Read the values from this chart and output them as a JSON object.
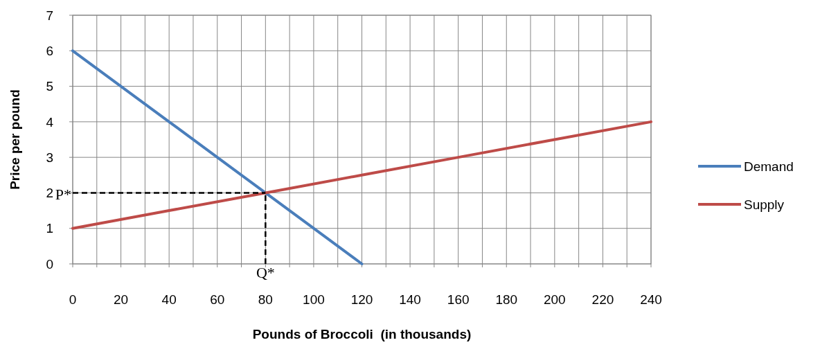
{
  "chart_data": {
    "type": "line",
    "xlabel": "Pounds of Broccoli  (in thousands)",
    "ylabel": "Price per pound",
    "series": [
      {
        "name": "Demand",
        "color": "#4a7ebb",
        "x": [
          0,
          20,
          40,
          60,
          80,
          100,
          120
        ],
        "values": [
          6,
          5,
          4,
          3,
          2,
          1,
          0
        ]
      },
      {
        "name": "Supply",
        "color": "#be4b48",
        "x": [
          0,
          40,
          80,
          120,
          160,
          200,
          240
        ],
        "values": [
          1,
          1.5,
          2,
          2.5,
          3,
          3.5,
          4
        ]
      }
    ],
    "xlim": [
      0,
      240
    ],
    "xticks": [
      0,
      {
        "value": 10,
        "label": null
      },
      20,
      {
        "value": 30,
        "label": null
      },
      40,
      {
        "value": 50,
        "label": null
      },
      60,
      {
        "value": 70,
        "label": null
      },
      80,
      {
        "value": 90,
        "label": null
      },
      100,
      {
        "value": 110,
        "label": null
      },
      120,
      {
        "value": 130,
        "label": null
      },
      140,
      {
        "value": 150,
        "label": null
      },
      160,
      {
        "value": 170,
        "label": null
      },
      180,
      {
        "value": 190,
        "label": null
      },
      200,
      {
        "value": 210,
        "label": null
      },
      220,
      {
        "value": 230,
        "label": null
      },
      240
    ],
    "ylim": [
      0,
      7
    ],
    "yticks": [
      0,
      1,
      2,
      3,
      4,
      5,
      6,
      7
    ],
    "ref_lines": [
      {
        "axis": "y",
        "value": 2,
        "label": "P*",
        "color": "#000000",
        "line_style": "dashed"
      },
      {
        "axis": "x",
        "value": 80,
        "label": "Q*",
        "color": "#000000",
        "line_style": "dashed"
      }
    ],
    "grid": true,
    "legend": "right",
    "marker": "none",
    "line_style": "solid"
  }
}
